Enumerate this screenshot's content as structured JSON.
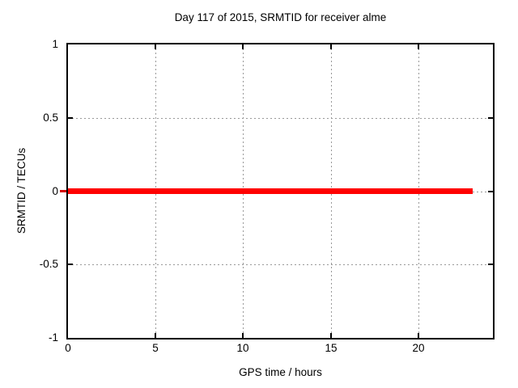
{
  "chart_data": {
    "type": "line",
    "title": "Day 117 of 2015, SRMTID for receiver alme",
    "xlabel": "GPS time / hours",
    "ylabel": "SRMTID / TECUs",
    "xlim": [
      0,
      24.26
    ],
    "ylim": [
      -1,
      1
    ],
    "xticks": {
      "values": [
        0,
        5,
        10,
        15,
        20
      ],
      "labels": [
        "0",
        "5",
        "10",
        "15",
        "20"
      ]
    },
    "yticks": {
      "values": [
        1,
        0.5,
        0,
        -0.5,
        -1
      ],
      "labels": [
        "1",
        "0.5",
        "0",
        "-0.5",
        "-1"
      ]
    },
    "grid": true,
    "grid_style": "dashed",
    "legend": "none",
    "series": [
      {
        "name": "SRMTID",
        "type": "line",
        "color": "#ff0000",
        "line_width": 7,
        "x": [
          0,
          23.1
        ],
        "y": [
          0,
          0
        ]
      }
    ]
  },
  "colors": {
    "background": "#ffffff",
    "plot_border": "#000000",
    "grid": "#999999",
    "tick": "#000000",
    "text": "#000000",
    "series_red": "#ff0000",
    "series_cap": "#d40000"
  }
}
